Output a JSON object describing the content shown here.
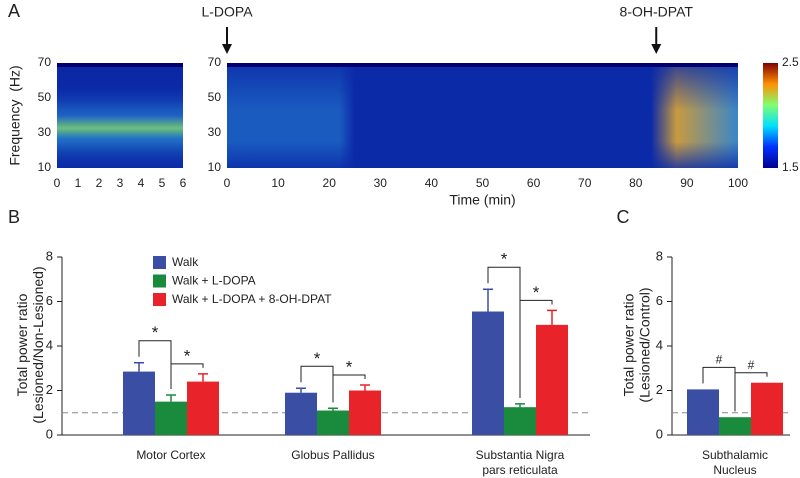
{
  "chart_data": [
    {
      "panel": "A",
      "type": "spectrogram",
      "ylabel": "Frequency  (Hz)",
      "xlim": [
        0,
        6
      ],
      "xticks": [
        0,
        1,
        2,
        3,
        4,
        5,
        6
      ],
      "ylim": [
        10,
        70
      ],
      "yticks": [
        10,
        30,
        50,
        70
      ]
    },
    {
      "type": "spectrogram",
      "xlabel": "Time (min)",
      "xlim": [
        0,
        100
      ],
      "xticks": [
        0,
        10,
        20,
        30,
        40,
        50,
        60,
        70,
        80,
        90,
        100
      ],
      "ylim": [
        10,
        70
      ],
      "yticks": [
        10,
        30,
        50,
        70
      ],
      "annotations": [
        {
          "text": "L-DOPA",
          "x": 0
        },
        {
          "text": "8-OH-DPAT",
          "x": 84
        }
      ],
      "colorbar": {
        "lim": [
          1.5,
          2.5
        ],
        "ticks": [
          1.5,
          2.5
        ]
      }
    },
    {
      "panel": "B",
      "type": "bar",
      "ylabel": "Total power ratio (Lesioned/Non-Lesioned)",
      "categories": [
        "Motor Cortex",
        "Globus Pallidus",
        "Substantia Nigra pars reticulata"
      ],
      "series": [
        {
          "name": "Walk",
          "color": "#3a4fa3",
          "values": [
            2.85,
            1.9,
            5.55
          ],
          "errors": [
            0.4,
            0.2,
            1.0
          ]
        },
        {
          "name": "Walk + L-DOPA",
          "color": "#1a8a3c",
          "values": [
            1.5,
            1.1,
            1.25
          ],
          "errors": [
            0.3,
            0.1,
            0.15
          ]
        },
        {
          "name": "Walk + L-DOPA + 8-OH-DPAT",
          "color": "#e8242a",
          "values": [
            2.4,
            2.0,
            4.95
          ],
          "errors": [
            0.35,
            0.25,
            0.65
          ]
        }
      ],
      "significance": [
        [
          "*",
          "*"
        ],
        [
          "*",
          "*"
        ],
        [
          "*",
          "*"
        ]
      ],
      "ylim": [
        0,
        8
      ],
      "yticks": [
        0,
        2,
        4,
        6,
        8
      ],
      "hline": 1
    },
    {
      "panel": "C",
      "type": "bar",
      "ylabel": "Total power ratio (Lesioned/Control)",
      "categories": [
        "Subthalamic Nucleus"
      ],
      "series": [
        {
          "color": "#3a4fa3",
          "values": [
            2.05
          ]
        },
        {
          "color": "#1a8a3c",
          "values": [
            0.8
          ]
        },
        {
          "color": "#e8242a",
          "values": [
            2.35
          ]
        }
      ],
      "significance": [
        [
          "#",
          "#"
        ]
      ],
      "ylim": [
        0,
        8
      ],
      "yticks": [
        0,
        2,
        4,
        6,
        8
      ],
      "hline": 1
    }
  ]
}
